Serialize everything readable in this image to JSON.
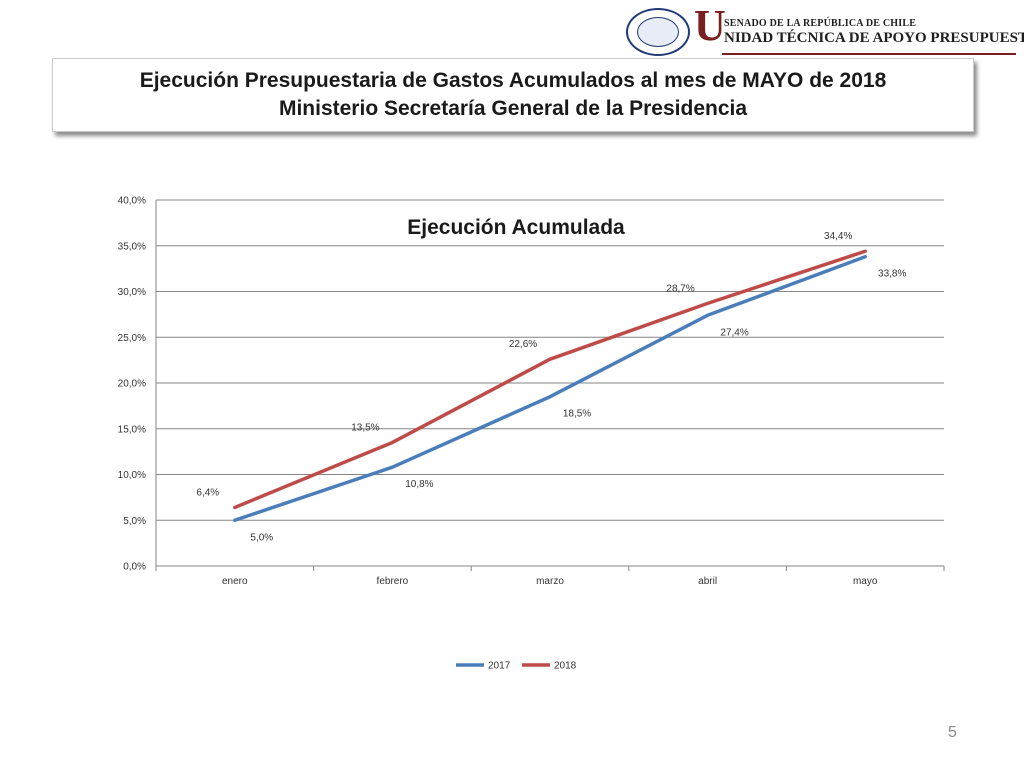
{
  "header": {
    "logo_top_text": "SENADO DE LA REPÚBLICA DE CHILE",
    "logo_main_text": "NIDAD TÉCNICA DE APOYO PRESUPUESTARIO",
    "logo_letter": "U",
    "seal_text": "REPÚBLICA DE CHILE · SENADO"
  },
  "title": {
    "line1": "Ejecución Presupuestaria de Gastos Acumulados al mes de MAYO de 2018",
    "line2": "Ministerio Secretaría General de la Presidencia"
  },
  "page_number": "5",
  "colors": {
    "series_2017": "#4a7ebb",
    "series_2018": "#be4b48",
    "grid": "#868686"
  },
  "chart_data": {
    "type": "line",
    "title": "Ejecución Acumulada",
    "categories": [
      "enero",
      "febrero",
      "marzo",
      "abril",
      "mayo"
    ],
    "series": [
      {
        "name": "2017",
        "values": [
          5.0,
          10.8,
          18.5,
          27.4,
          33.8
        ],
        "labels": [
          "5,0%",
          "10,8%",
          "18,5%",
          "27,4%",
          "33,8%"
        ]
      },
      {
        "name": "2018",
        "values": [
          6.4,
          13.5,
          22.6,
          28.7,
          34.4
        ],
        "labels": [
          "6,4%",
          "13,5%",
          "22,6%",
          "28,7%",
          "34,4%"
        ]
      }
    ],
    "yticks": [
      0,
      5,
      10,
      15,
      20,
      25,
      30,
      35,
      40
    ],
    "ytick_labels": [
      "0,0%",
      "5,0%",
      "10,0%",
      "15,0%",
      "20,0%",
      "25,0%",
      "30,0%",
      "35,0%",
      "40,0%"
    ],
    "ylim": [
      0,
      40
    ],
    "grid": true,
    "legend_position": "bottom"
  }
}
